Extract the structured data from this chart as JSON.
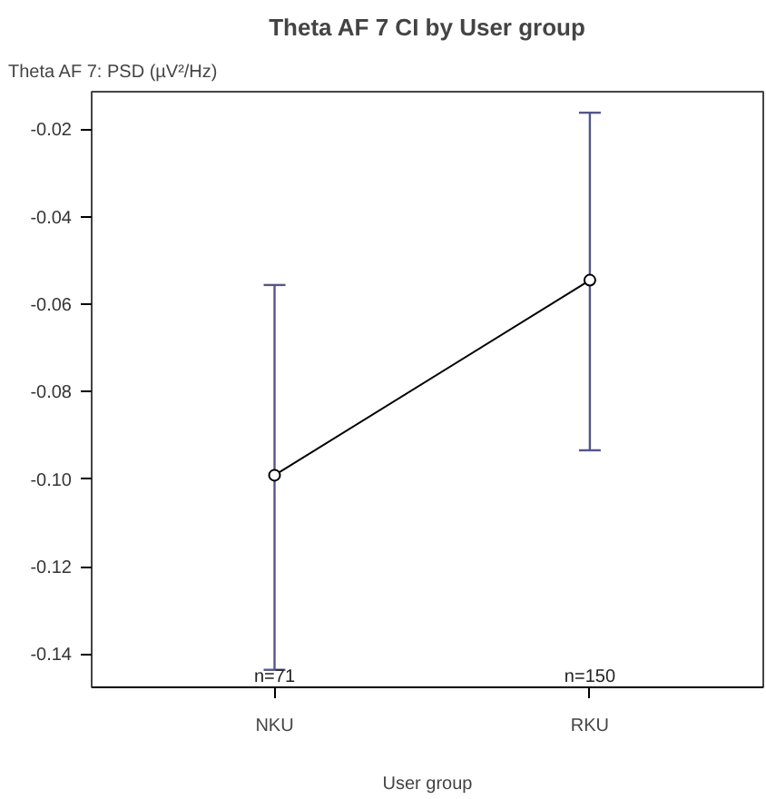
{
  "chart_data": {
    "type": "line",
    "title": "Theta AF 7 CI by User group",
    "ylabel": "Theta AF 7: PSD (µV²/Hz)",
    "xlabel": "User group",
    "categories": [
      "NKU",
      "RKU"
    ],
    "series": [
      {
        "color": "#000000",
        "values": [
          -0.0991,
          -0.0545
        ],
        "errors": [
          [
            -0.1436,
            -0.0556
          ],
          [
            -0.0934,
            -0.0162
          ]
        ]
      }
    ],
    "marker": "circle",
    "line_style": "solid",
    "grid": false,
    "ylim": [
      -0.1476,
      -0.0114
    ],
    "yticks": [
      {
        "value": -0.14,
        "label": "-0.14"
      },
      {
        "value": -0.12,
        "label": "-0.12"
      },
      {
        "value": -0.1,
        "label": "-0.10"
      },
      {
        "value": -0.08,
        "label": "-0.08"
      },
      {
        "value": -0.06,
        "label": "-0.06"
      },
      {
        "value": -0.04,
        "label": "-0.04"
      },
      {
        "value": -0.02,
        "label": "-0.02"
      }
    ],
    "annotations": [
      "n=71",
      "n=150"
    ]
  }
}
